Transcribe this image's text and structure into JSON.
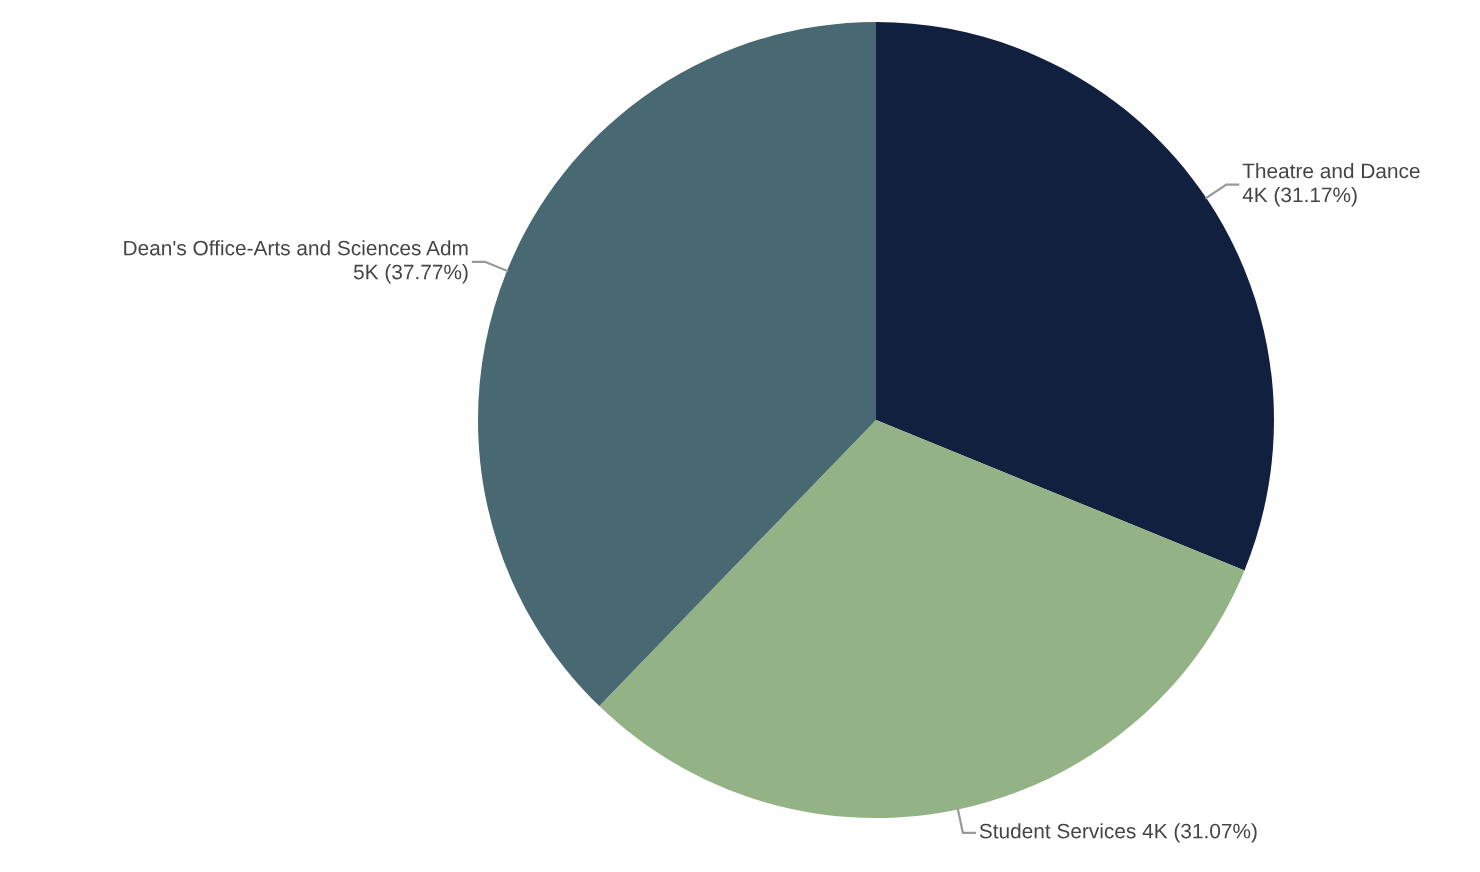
{
  "chart_data": {
    "type": "pie",
    "categories": [
      "Theatre and Dance",
      "Student Services",
      "Dean's Office-Arts and Sciences Adm"
    ],
    "values": [
      31.17,
      31.07,
      37.77
    ],
    "value_labels": [
      "4K (31.17%)",
      "4K (31.07%)",
      "5K (37.77%)"
    ],
    "colors": [
      "#12203f",
      "#93b386",
      "#486872"
    ]
  }
}
